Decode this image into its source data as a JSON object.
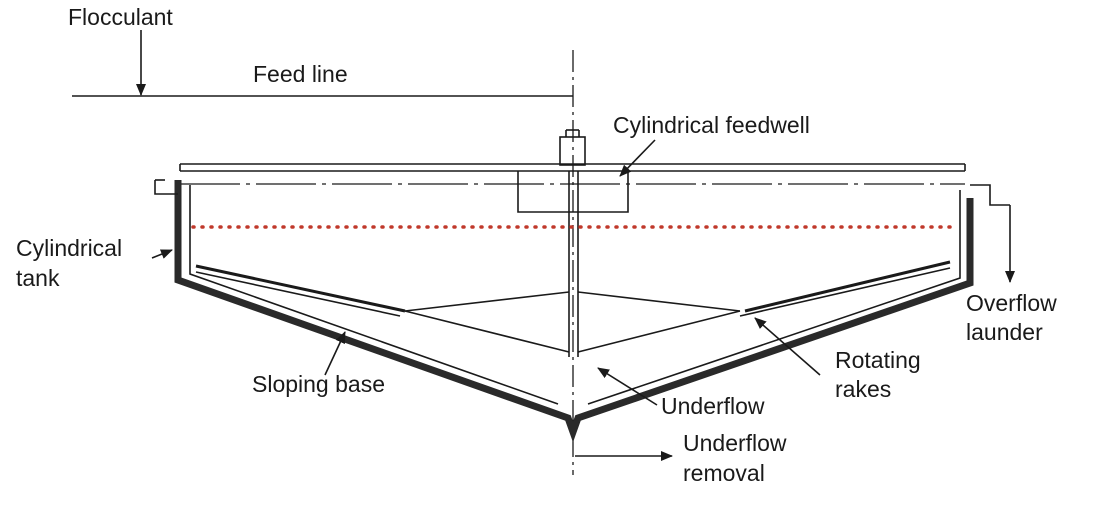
{
  "labels": {
    "flocculant": "Flocculant",
    "feed_line": "Feed line",
    "cylindrical_feedwell": "Cylindrical feedwell",
    "cylindrical_tank_1": "Cylindrical",
    "cylindrical_tank_2": "tank",
    "overflow_launder_1": "Overflow",
    "overflow_launder_2": "launder",
    "rotating_rakes_1": "Rotating",
    "rotating_rakes_2": "rakes",
    "sloping_base": "Sloping base",
    "underflow": "Underflow",
    "underflow_removal_1": "Underflow",
    "underflow_removal_2": "removal"
  },
  "colors": {
    "line": "#1a1a1a",
    "tank_wall": "#2a2a2a",
    "liquid_level": "#c0392b"
  }
}
